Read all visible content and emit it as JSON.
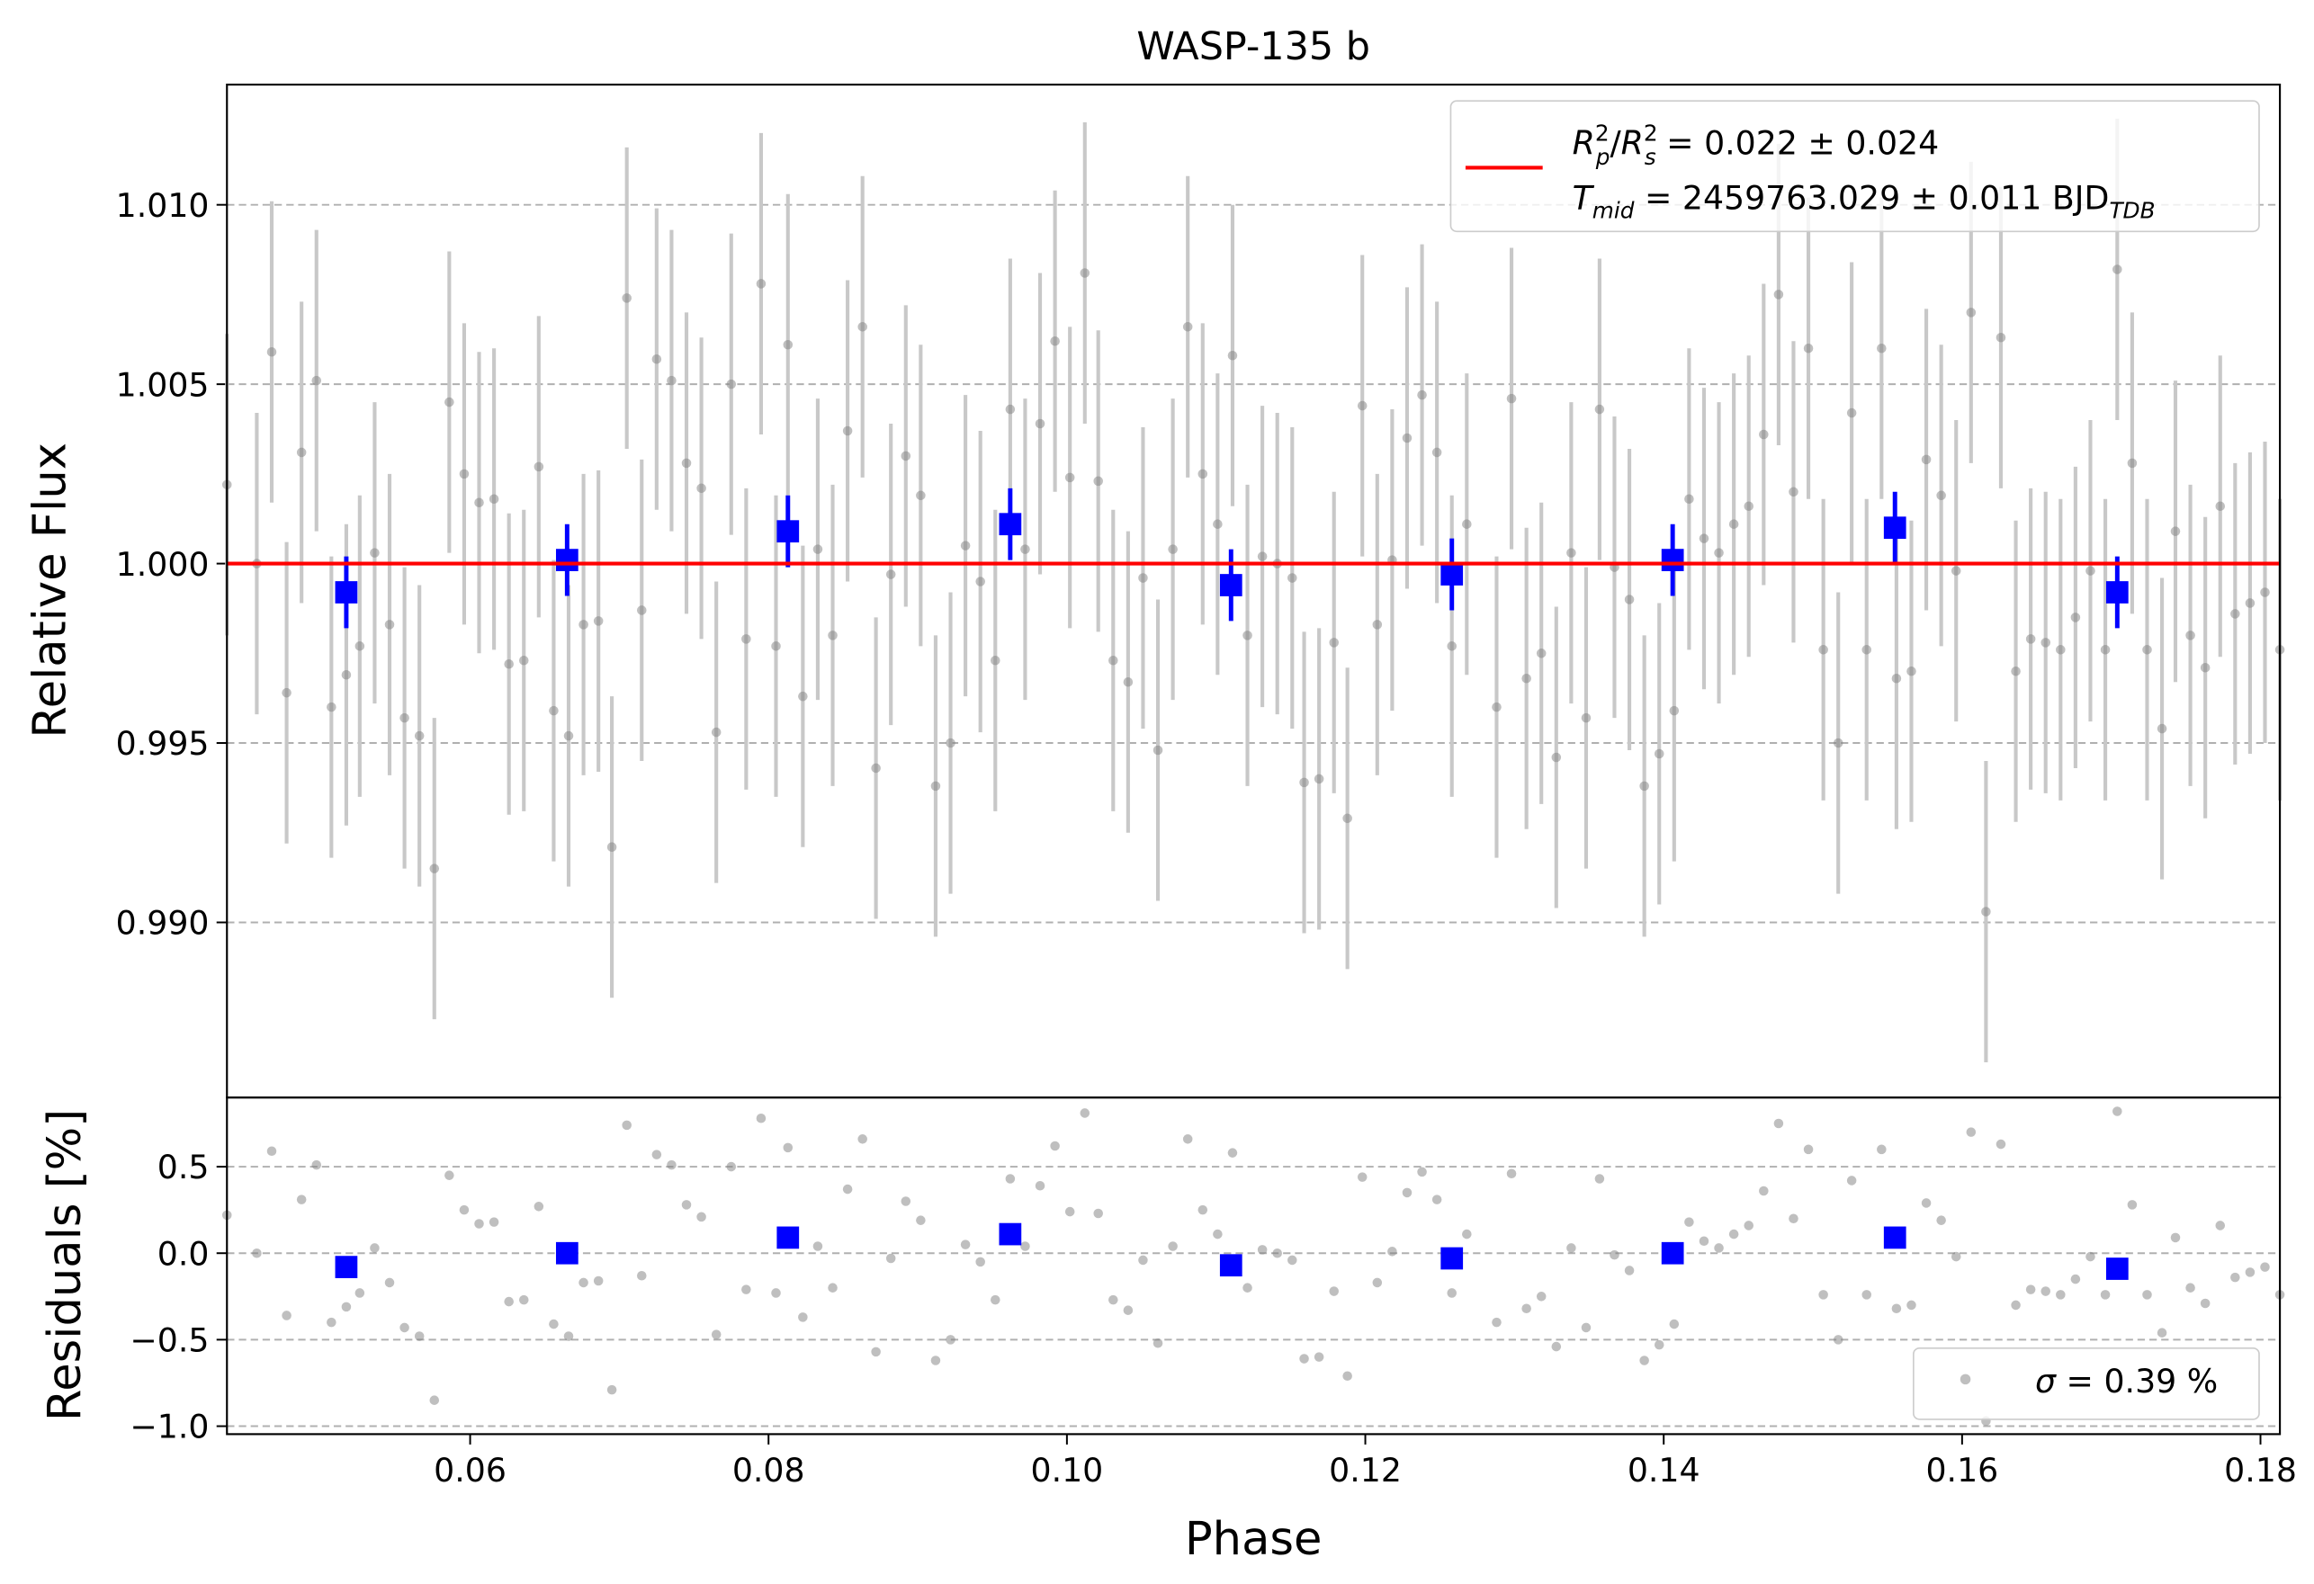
{
  "chart_data": [
    {
      "type": "scatter",
      "title": "WASP-135 b",
      "ylabel": "Relative Flux",
      "xlim": [
        0.0437,
        0.1813
      ],
      "ylim": [
        0.98512,
        1.01335
      ],
      "yticks": [
        {
          "value": 0.99,
          "label": "0.990"
        },
        0.995,
        {
          "value": 1,
          "label": "1.000"
        },
        1.005,
        {
          "value": 1.01,
          "label": "1.010"
        }
      ],
      "grid": true,
      "series": [
        {
          "x": [
            0.0437,
            0.0457,
            0.0467,
            0.0477,
            0.0487,
            0.0497,
            0.0507,
            0.0517,
            0.0526,
            0.0536,
            0.0546,
            0.0556,
            0.0566,
            0.0576,
            0.0586,
            0.0596,
            0.0606,
            0.0616,
            0.0626,
            0.0636,
            0.0646,
            0.0656,
            0.0666,
            0.0676,
            0.0686,
            0.0695,
            0.0705,
            0.0715,
            0.0725,
            0.0735,
            0.0745,
            0.0755,
            0.0765,
            0.0775,
            0.0785,
            0.0795,
            0.0805,
            0.0813,
            0.0823,
            0.0833,
            0.0843,
            0.0853,
            0.0863,
            0.0872,
            0.0882,
            0.0892,
            0.0902,
            0.0912,
            0.0922,
            0.0932,
            0.0942,
            0.0952,
            0.0962,
            0.0972,
            0.0982,
            0.0992,
            0.1002,
            0.1012,
            0.1021,
            0.1031,
            0.1041,
            0.1051,
            0.1061,
            0.1071,
            0.1081,
            0.1091,
            0.1101,
            0.1111,
            0.1121,
            0.1131,
            0.1141,
            0.1151,
            0.1159,
            0.1169,
            0.1179,
            0.1188,
            0.1198,
            0.1208,
            0.1218,
            0.1228,
            0.1238,
            0.1248,
            0.1258,
            0.1268,
            0.1288,
            0.1298,
            0.1308,
            0.1318,
            0.1328,
            0.1338,
            0.1348,
            0.1357,
            0.1367,
            0.1377,
            0.1387,
            0.1397,
            0.1407,
            0.1417,
            0.1427,
            0.1437,
            0.1447,
            0.1457,
            0.1467,
            0.1477,
            0.1487,
            0.1497,
            0.1507,
            0.1517,
            0.1526,
            0.1536,
            0.1546,
            0.1556,
            0.1566,
            0.1576,
            0.1586,
            0.1596,
            0.1606,
            0.1616,
            0.1626,
            0.1636,
            0.1646,
            0.1656,
            0.1666,
            0.1676,
            0.1686,
            0.1696,
            0.1704,
            0.1714,
            0.1724,
            0.1734,
            0.1743,
            0.1753,
            0.1763,
            0.1773,
            0.1783,
            0.1793,
            0.1803,
            0.1813
          ],
          "values": [
            1.0022,
            1.0,
            1.0059,
            0.9964,
            1.0031,
            1.0051,
            0.996,
            0.9969,
            0.9977,
            1.0003,
            0.9983,
            0.9957,
            0.9952,
            0.9915,
            1.0045,
            1.0025,
            1.0017,
            1.0018,
            0.9972,
            0.9973,
            1.0027,
            0.9959,
            0.9952,
            0.9983,
            0.9984,
            0.9921,
            1.0074,
            0.9987,
            1.0057,
            1.0051,
            1.0028,
            1.0021,
            0.9953,
            1.005,
            0.9979,
            1.0078,
            0.9977,
            1.0061,
            0.9963,
            1.0004,
            0.998,
            1.0037,
            1.0066,
            0.9943,
            0.9997,
            1.003,
            1.0019,
            0.9938,
            0.995,
            1.0005,
            0.9995,
            0.9973,
            1.0043,
            1.0004,
            1.0039,
            1.0062,
            1.0024,
            1.0081,
            1.0023,
            0.9973,
            0.9967,
            0.9996,
            0.9948,
            1.0004,
            1.0066,
            1.0025,
            1.0011,
            1.0058,
            0.998,
            1.0002,
            1.0,
            0.9996,
            0.9939,
            0.994,
            0.9978,
            0.9929,
            1.0044,
            0.9983,
            1.0001,
            1.0035,
            1.0047,
            1.0031,
            0.9977,
            1.0011,
            0.996,
            1.0046,
            0.9968,
            0.9975,
            0.9946,
            1.0003,
            0.9957,
            1.0043,
            0.9999,
            0.999,
            0.9938,
            0.9947,
            0.9959,
            1.0018,
            1.0007,
            1.0003,
            1.0011,
            1.0016,
            1.0036,
            1.0075,
            1.002,
            1.006,
            0.9976,
            0.995,
            1.0042,
            0.9976,
            1.006,
            0.9968,
            0.997,
            1.0029,
            1.0019,
            0.9998,
            1.007,
            0.9903,
            1.0063,
            0.997,
            0.9979,
            0.9978,
            0.9976,
            0.9985,
            0.9998,
            0.9976,
            1.0082,
            1.0028,
            0.9976,
            0.9954,
            1.0009,
            0.998,
            0.9971,
            1.0016,
            0.9986,
            0.9989,
            0.9992,
            0.9976
          ],
          "yerr": 0.0042,
          "color": "#808080",
          "errcolor": "#c8c8c8"
        },
        {
          "x": [
            0.0517,
            0.0665,
            0.0813,
            0.0962,
            0.111,
            0.1258,
            0.1406,
            0.1555,
            0.1704
          ],
          "values": [
            0.9992,
            1.0001,
            1.0009,
            1.0011,
            0.9994,
            0.9997,
            1.0001,
            1.001,
            0.9992
          ],
          "yerr": 0.001,
          "color": "#0000ff",
          "marker": "square"
        },
        {
          "kind": "hline",
          "values": [
            1
          ],
          "color": "#ff0000",
          "name_parts": [
            "R",
            "2",
            "p",
            "/",
            "R",
            "2",
            "s",
            " = 0.022 ± 0.024"
          ],
          "name_parts_2": [
            "T",
            "mid",
            " = 2459763.029 ± 0.011 BJD",
            "TDB"
          ]
        }
      ]
    },
    {
      "type": "scatter",
      "xlabel": "Phase",
      "ylabel": "Residuals [%]",
      "xlim": [
        0.0437,
        0.1813
      ],
      "ylim": [
        -1.046,
        0.9
      ],
      "xticks": [
        0.06,
        0.08,
        {
          "value": 0.1,
          "label": "0.10"
        },
        0.12,
        0.14,
        0.16,
        0.18
      ],
      "yticks": [
        {
          "value": -1,
          "label": "−1.0"
        },
        {
          "value": -0.5,
          "label": "−0.5"
        },
        {
          "value": 0,
          "label": "0.0"
        },
        0.5
      ],
      "grid": true,
      "series": [
        {
          "name_parts": [
            "σ",
            " = 0.39 %"
          ],
          "x": [
            0.0437,
            0.0457,
            0.0467,
            0.0477,
            0.0487,
            0.0497,
            0.0507,
            0.0517,
            0.0526,
            0.0536,
            0.0546,
            0.0556,
            0.0566,
            0.0576,
            0.0586,
            0.0596,
            0.0606,
            0.0616,
            0.0626,
            0.0636,
            0.0646,
            0.0656,
            0.0666,
            0.0676,
            0.0686,
            0.0695,
            0.0705,
            0.0715,
            0.0725,
            0.0735,
            0.0745,
            0.0755,
            0.0765,
            0.0775,
            0.0785,
            0.0795,
            0.0805,
            0.0813,
            0.0823,
            0.0833,
            0.0843,
            0.0853,
            0.0863,
            0.0872,
            0.0882,
            0.0892,
            0.0902,
            0.0912,
            0.0922,
            0.0932,
            0.0942,
            0.0952,
            0.0962,
            0.0972,
            0.0982,
            0.0992,
            0.1002,
            0.1012,
            0.1021,
            0.1031,
            0.1041,
            0.1051,
            0.1061,
            0.1071,
            0.1081,
            0.1091,
            0.1101,
            0.1111,
            0.1121,
            0.1131,
            0.1141,
            0.1151,
            0.1159,
            0.1169,
            0.1179,
            0.1188,
            0.1198,
            0.1208,
            0.1218,
            0.1228,
            0.1238,
            0.1248,
            0.1258,
            0.1268,
            0.1288,
            0.1298,
            0.1308,
            0.1318,
            0.1328,
            0.1338,
            0.1348,
            0.1357,
            0.1367,
            0.1377,
            0.1387,
            0.1397,
            0.1407,
            0.1417,
            0.1427,
            0.1437,
            0.1447,
            0.1457,
            0.1467,
            0.1477,
            0.1487,
            0.1497,
            0.1507,
            0.1517,
            0.1526,
            0.1536,
            0.1546,
            0.1556,
            0.1566,
            0.1576,
            0.1586,
            0.1596,
            0.1606,
            0.1616,
            0.1626,
            0.1636,
            0.1646,
            0.1656,
            0.1666,
            0.1676,
            0.1686,
            0.1696,
            0.1704,
            0.1714,
            0.1724,
            0.1734,
            0.1743,
            0.1753,
            0.1763,
            0.1773,
            0.1783,
            0.1793,
            0.1803,
            0.1813
          ],
          "values": [
            0.22,
            0.0,
            0.59,
            -0.36,
            0.31,
            0.51,
            -0.4,
            -0.31,
            -0.23,
            0.03,
            -0.17,
            -0.43,
            -0.48,
            -0.85,
            0.45,
            0.25,
            0.17,
            0.18,
            -0.28,
            -0.27,
            0.27,
            -0.41,
            -0.48,
            -0.17,
            -0.16,
            -0.79,
            0.74,
            -0.13,
            0.57,
            0.51,
            0.28,
            0.21,
            -0.47,
            0.5,
            -0.21,
            0.78,
            -0.23,
            0.61,
            -0.37,
            0.04,
            -0.2,
            0.37,
            0.66,
            -0.57,
            -0.03,
            0.3,
            0.19,
            -0.62,
            -0.5,
            0.05,
            -0.05,
            -0.27,
            0.43,
            0.04,
            0.39,
            0.62,
            0.24,
            0.81,
            0.23,
            -0.27,
            -0.33,
            -0.04,
            -0.52,
            0.04,
            0.66,
            0.25,
            0.11,
            0.58,
            -0.2,
            0.02,
            0.0,
            -0.04,
            -0.61,
            -0.6,
            -0.22,
            -0.71,
            0.44,
            -0.17,
            0.01,
            0.35,
            0.47,
            0.31,
            -0.23,
            0.11,
            -0.4,
            0.46,
            -0.32,
            -0.25,
            -0.54,
            0.03,
            -0.43,
            0.43,
            -0.01,
            -0.1,
            -0.62,
            -0.53,
            -0.41,
            0.18,
            0.07,
            0.03,
            0.11,
            0.16,
            0.36,
            0.75,
            0.2,
            0.6,
            -0.24,
            -0.5,
            0.42,
            -0.24,
            0.6,
            -0.32,
            -0.3,
            0.29,
            0.19,
            -0.02,
            0.7,
            -0.97,
            0.63,
            -0.3,
            -0.21,
            -0.22,
            -0.24,
            -0.15,
            -0.02,
            -0.24,
            0.82,
            0.28,
            -0.24,
            -0.46,
            0.09,
            -0.2,
            -0.29,
            0.16,
            -0.14,
            -0.11,
            -0.08,
            -0.24
          ],
          "color": "#808080"
        },
        {
          "x": [
            0.0517,
            0.0665,
            0.0813,
            0.0962,
            0.111,
            0.1258,
            0.1406,
            0.1555,
            0.1704
          ],
          "values": [
            -0.08,
            0.0,
            0.09,
            0.11,
            -0.07,
            -0.03,
            0.0,
            0.09,
            -0.09
          ],
          "color": "#0000ff",
          "marker": "square"
        }
      ]
    }
  ]
}
